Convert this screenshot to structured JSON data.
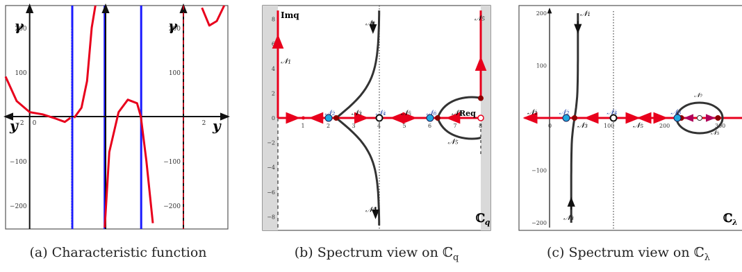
{
  "panels": [
    {
      "caption": "(a) Characteristic function",
      "chart_data": {
        "type": "line",
        "title": "",
        "xlabel": "y",
        "ylabel": "γ",
        "right_ylabel": "γ",
        "y_ticks": [
          "200",
          "100",
          "0",
          "−100",
          "−200"
        ],
        "x_ticks": [
          "−2",
          "0",
          "2"
        ],
        "ylim": [
          -250,
          250
        ],
        "asymptote_color": "#1a1aff",
        "curve_color": "#e8001c",
        "series": [
          {
            "values": [
              [
                -4.6,
                90
              ],
              [
                -4.0,
                35
              ],
              [
                -3.3,
                10
              ],
              [
                -2.6,
                5
              ],
              [
                -2.0,
                -3
              ],
              [
                -1.4,
                -12
              ],
              [
                -1.1,
                -3
              ]
            ]
          },
          {
            "values": [
              [
                -0.9,
                -3
              ],
              [
                -0.5,
                20
              ],
              [
                -0.2,
                80
              ],
              [
                0.05,
                200
              ],
              [
                0.25,
                250
              ]
            ]
          },
          {
            "values": [
              [
                0.75,
                -250
              ],
              [
                1.0,
                -80
              ],
              [
                1.5,
                10
              ],
              [
                2.0,
                38
              ],
              [
                2.5,
                30
              ],
              [
                2.7,
                0
              ],
              [
                3.0,
                -100
              ],
              [
                3.35,
                -240
              ]
            ]
          },
          {
            "values": [
              [
                6.0,
                245
              ],
              [
                6.4,
                205
              ],
              [
                6.8,
                215
              ],
              [
                7.2,
                250
              ]
            ]
          }
        ]
      }
    },
    {
      "caption": "(b) Spectrum view on ℂ",
      "caption_sub": "q",
      "chart_data": {
        "type": "scatter",
        "title": "",
        "xlabel": "Req",
        "ylabel": "Imq",
        "plane_label": "ℂ",
        "plane_sub": "q",
        "x_ticks": [
          "1",
          "2",
          "3",
          "4",
          "5",
          "6",
          "7",
          "8"
        ],
        "y_ticks": [
          "8",
          "6",
          "4",
          "2",
          "0",
          "−2",
          "−4",
          "−6",
          "−8"
        ],
        "xlim": [
          -0.2,
          8.5
        ],
        "ylim": [
          -9,
          9
        ],
        "region_labels": [
          "𝒩₁",
          "𝒩₂",
          "𝒩₃",
          "𝒩₄",
          "𝒩₅",
          "𝒩₆",
          "𝒩₇",
          "𝒩₈"
        ],
        "special_points": [
          [
            2,
            0
          ],
          [
            4,
            0
          ],
          [
            6,
            0
          ],
          [
            8,
            0
          ]
        ]
      }
    },
    {
      "caption": "(c) Spectrum view on ℂ",
      "caption_sub": "λ",
      "chart_data": {
        "type": "scatter",
        "title": "",
        "plane_label": "ℂ",
        "plane_sub": "λ",
        "x_ticks": [
          "0",
          "100",
          "200",
          "300"
        ],
        "y_ticks": [
          "200",
          "100",
          "−100",
          "−200"
        ],
        "xlim": [
          -50,
          310
        ],
        "ylim": [
          -210,
          210
        ],
        "region_labels": [
          "𝒩₁",
          "𝒩₂",
          "𝒩₃",
          "𝒩₄",
          "𝒩₅",
          "𝒩₆",
          "𝒩₇",
          "𝒩₈"
        ],
        "special_points": [
          [
            25,
            0
          ],
          [
            110,
            0
          ],
          [
            225,
            0
          ]
        ]
      }
    }
  ]
}
